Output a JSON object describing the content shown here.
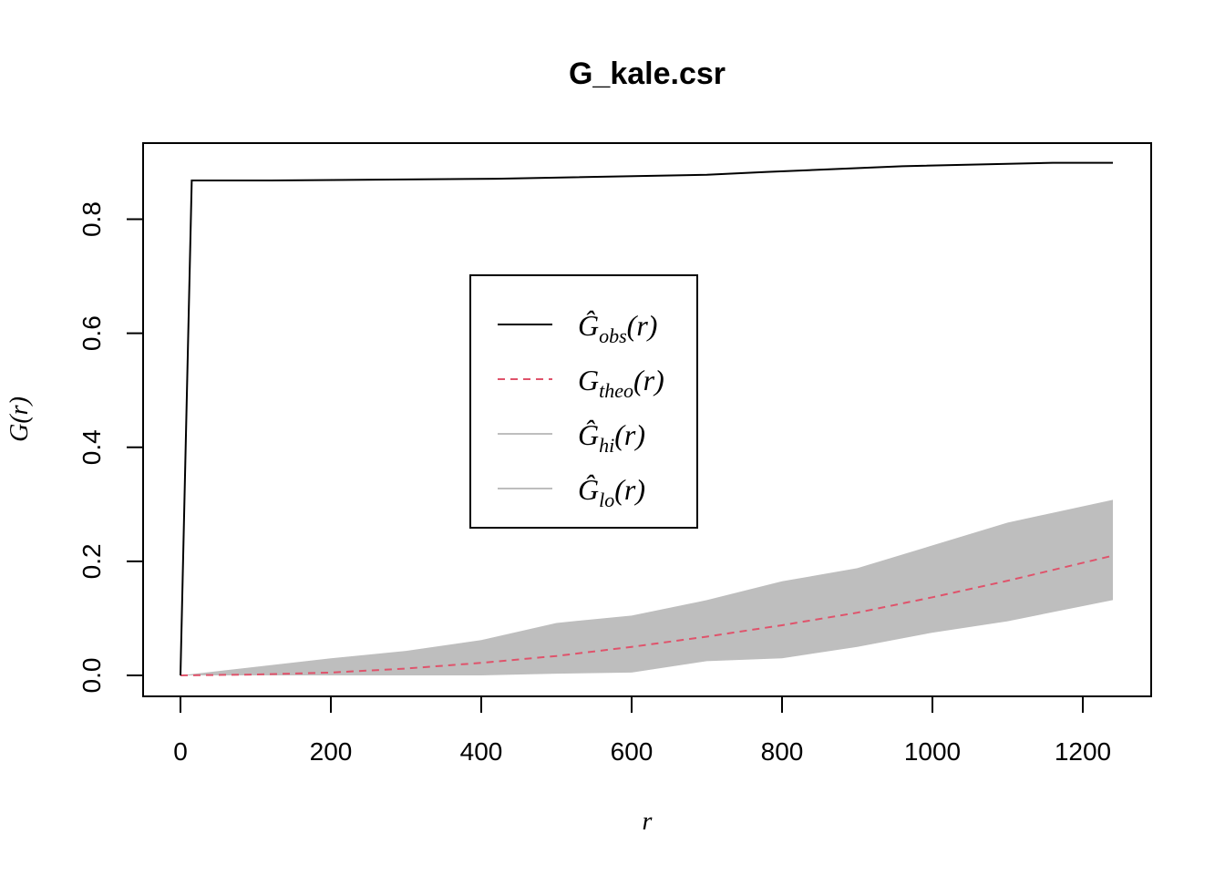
{
  "chart_data": {
    "type": "line",
    "title": "G_kale.csr",
    "xlabel": "r",
    "ylabel": "G(r)",
    "xlim": [
      0,
      1240
    ],
    "ylim": [
      0,
      0.9
    ],
    "x_ticks": [
      "0",
      "200",
      "400",
      "600",
      "800",
      "1000",
      "1200"
    ],
    "y_ticks": [
      "0.0",
      "0.2",
      "0.4",
      "0.6",
      "0.8"
    ],
    "legend_position": "center",
    "series": [
      {
        "name": "obs",
        "legend_main": "Ĝ",
        "legend_sub": "obs",
        "legend_tail": "(r)",
        "color": "#000000",
        "style": "solid",
        "x": [
          0,
          15,
          120,
          420,
          700,
          780,
          870,
          960,
          1160,
          1240
        ],
        "y": [
          0,
          0.868,
          0.868,
          0.871,
          0.878,
          0.883,
          0.888,
          0.893,
          0.899,
          0.899
        ]
      },
      {
        "name": "theo",
        "legend_main": "G",
        "legend_sub": "theo",
        "legend_tail": "(r)",
        "color": "#DF536B",
        "style": "dashed",
        "x": [
          0,
          100,
          200,
          300,
          400,
          500,
          600,
          700,
          800,
          900,
          1000,
          1100,
          1240
        ],
        "y": [
          0,
          0.0015,
          0.005,
          0.012,
          0.022,
          0.034,
          0.05,
          0.068,
          0.088,
          0.11,
          0.137,
          0.166,
          0.21
        ]
      },
      {
        "name": "hi",
        "legend_main": "Ĝ",
        "legend_sub": "hi",
        "legend_tail": "(r)",
        "color": "#BEBEBE",
        "style": "solid",
        "x": [
          0,
          100,
          200,
          300,
          400,
          500,
          600,
          700,
          800,
          900,
          1000,
          1100,
          1240
        ],
        "y": [
          0,
          0.015,
          0.03,
          0.043,
          0.062,
          0.092,
          0.105,
          0.132,
          0.165,
          0.188,
          0.228,
          0.268,
          0.308
        ]
      },
      {
        "name": "lo",
        "legend_main": "Ĝ",
        "legend_sub": "lo",
        "legend_tail": "(r)",
        "color": "#BEBEBE",
        "style": "solid",
        "x": [
          0,
          100,
          200,
          300,
          400,
          500,
          600,
          700,
          800,
          900,
          1000,
          1100,
          1240
        ],
        "y": [
          0,
          0,
          0,
          0,
          0,
          0.003,
          0.005,
          0.025,
          0.03,
          0.05,
          0.075,
          0.095,
          0.132
        ]
      }
    ]
  }
}
